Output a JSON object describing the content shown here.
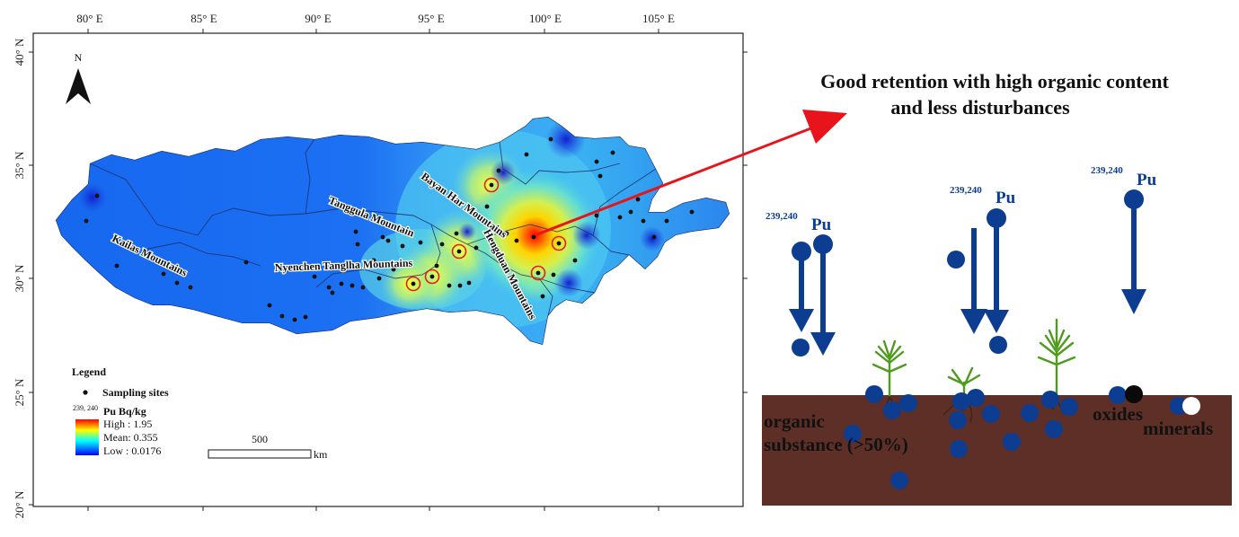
{
  "map": {
    "lon_ticks": [
      "80° E",
      "85° E",
      "90° E",
      "95° E",
      "100° E",
      "105° E"
    ],
    "lat_ticks": [
      "40° N",
      "35° N",
      "30° N",
      "25° N",
      "20° N"
    ],
    "north_label": "N",
    "mountain_labels": {
      "kailas": "Kailas Mountains",
      "tanggula": "Tanggula Mountain",
      "bayan": "Bayan Har Mountains",
      "nyenchen": "Nyenchen Tanglha Mountains",
      "hengduan": "Hengduan Mountains"
    },
    "legend": {
      "title": "Legend",
      "sites_label": "Sampling sites",
      "pu_superscript": "239, 240",
      "pu_label": "Pu Bq/kg",
      "high": "High : 1.95",
      "mean": "Mean: 0.355",
      "low": "Low : 0.0176",
      "ramp_colors": [
        "#ff0000",
        "#ffff00",
        "#00ffff",
        "#0000ff"
      ]
    },
    "scalebar": {
      "value": "500",
      "unit": "km"
    }
  },
  "schematic": {
    "caption_line1": "Good retention with high organic content",
    "caption_line2": "and less disturbances",
    "pu_superscript": "239,240",
    "pu_symbol": "Pu",
    "organic_line1": "organic",
    "organic_line2": "substance (>50%)",
    "oxides_label": "oxides",
    "minerals_label": "minerals",
    "soil_color": "#5e2f26",
    "particle_color": "#0d3d91",
    "arrow_color": "#e8141c"
  }
}
